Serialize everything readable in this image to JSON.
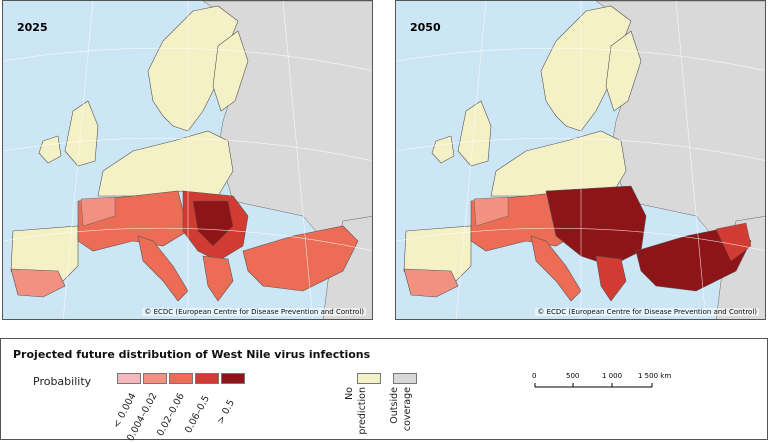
{
  "maps": [
    {
      "year": "2025",
      "credit": "© ECDC (European Centre for Disease Prevention and Control)"
    },
    {
      "year": "2050",
      "credit": "© ECDC (European Centre for Disease Prevention and Control)"
    }
  ],
  "legend": {
    "title": "Projected future distribution of West Nile virus infections",
    "probability_label": "Probability",
    "classes": [
      {
        "label": "< 0.004",
        "color": "#f6b8bc"
      },
      {
        "label": "0.004–0.02",
        "color": "#f29181"
      },
      {
        "label": "0.02–0.06",
        "color": "#ec6c56"
      },
      {
        "label": "0.06–0.5",
        "color": "#d23b32"
      },
      {
        "label": "> 0.5",
        "color": "#8e1517"
      }
    ],
    "no_prediction": {
      "label1": "No",
      "label2": "prediction",
      "color": "#f5f1c6"
    },
    "outside_coverage": {
      "label1": "Outside",
      "label2": "coverage",
      "color": "#d9d9d9"
    },
    "scale": {
      "ticks": [
        "0",
        "500",
        "1 000",
        "1 500 km"
      ]
    }
  },
  "colors": {
    "sea": "#cde6f5",
    "land_outside": "#d9d9d9",
    "land_no_pred": "#f5f1c6"
  }
}
